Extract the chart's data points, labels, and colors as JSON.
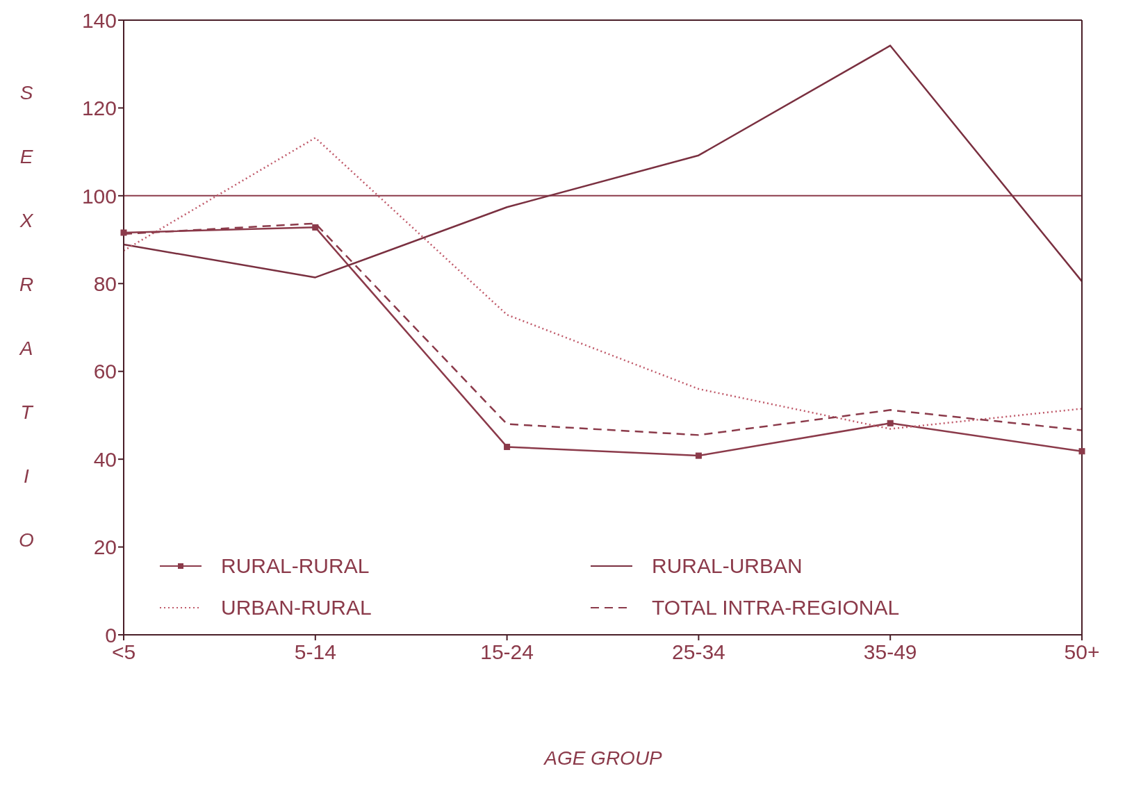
{
  "chart_data": {
    "type": "line",
    "xlabel": "AGE GROUP",
    "ylabel": "SEX RATIO",
    "categories": [
      "<5",
      "5-14",
      "15-24",
      "25-34",
      "35-49",
      "50+"
    ],
    "ylim": [
      0,
      140
    ],
    "yticks": [
      0,
      20,
      40,
      60,
      80,
      100,
      120,
      140
    ],
    "grid": false,
    "legend": "bottom left",
    "ref_lines": [
      {
        "axis": "y",
        "value": 100,
        "color": "#8b3a4a",
        "line_style": "solid"
      }
    ],
    "series": [
      {
        "name": "RURAL-RURAL",
        "color": "#8b3a4a",
        "marker": "square",
        "line_style": "solid",
        "values": [
          91.6,
          92.8,
          42.8,
          40.8,
          48.2,
          41.8
        ]
      },
      {
        "name": "RURAL-URBAN",
        "color": "#7a3040",
        "marker": "none",
        "line_style": "solid",
        "values": [
          88.9,
          81.4,
          97.4,
          109.2,
          134.2,
          80.5
        ]
      },
      {
        "name": "URBAN-RURAL",
        "color": "#c05a6a",
        "marker": "none",
        "line_style": "dotted",
        "values": [
          87.5,
          113.2,
          72.9,
          56,
          46.9,
          51.5
        ]
      },
      {
        "name": "TOTAL INTRA-REGIONAL",
        "color": "#8b3a4a",
        "marker": "none",
        "line_style": "dashed",
        "values": [
          91.3,
          93.7,
          48,
          45.5,
          51.2,
          46.6
        ]
      }
    ]
  }
}
